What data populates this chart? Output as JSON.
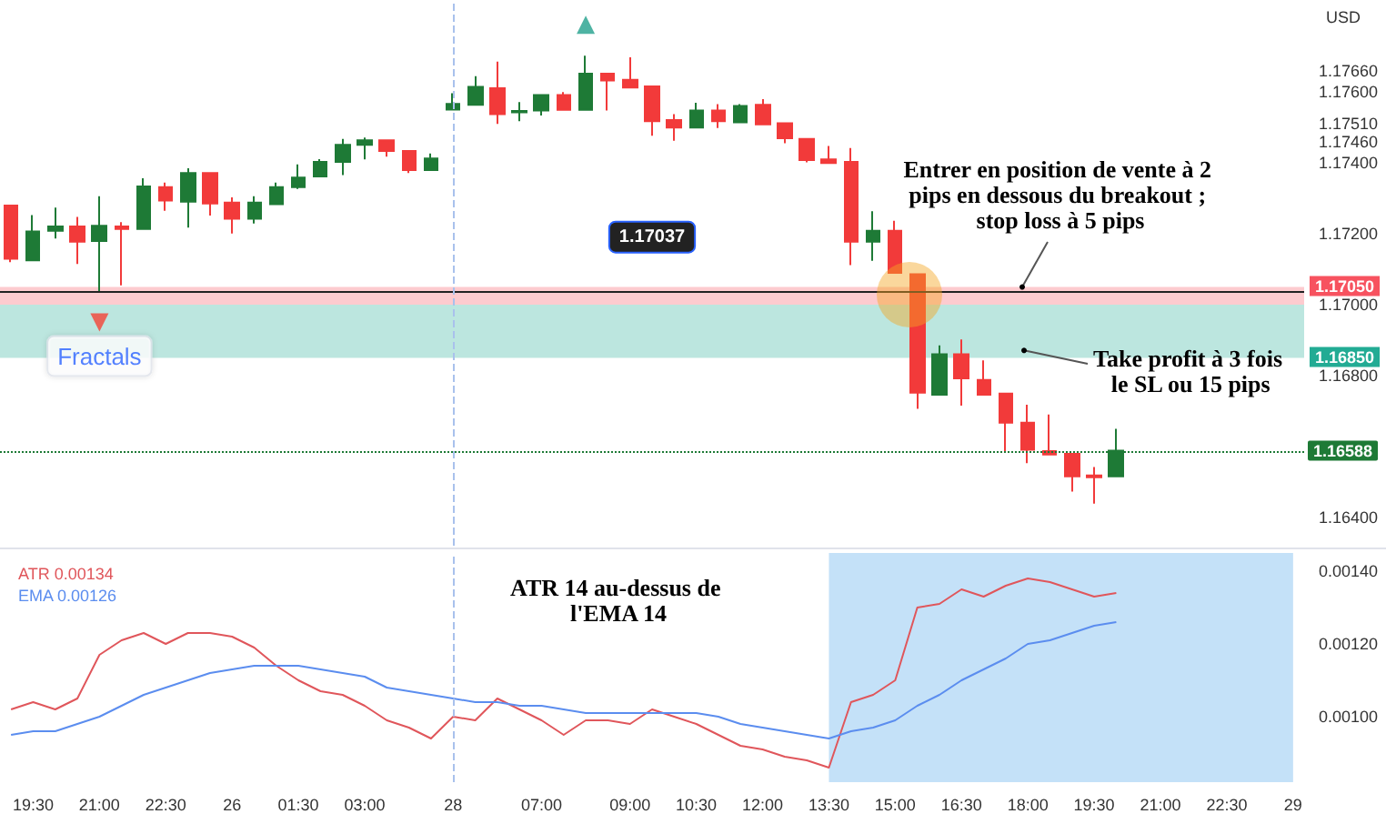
{
  "chart_data": [
    {
      "type": "candlestick",
      "ylabel": "USD",
      "tick_labels": "y",
      "categories": [
        null,
        "19:30",
        null,
        null,
        "21:00",
        null,
        null,
        "22:30",
        null,
        null,
        "26",
        null,
        null,
        "01:30",
        null,
        null,
        "03:00",
        null,
        null,
        null,
        "28",
        null,
        null,
        null,
        "07:00",
        null,
        null,
        null,
        "09:00",
        null,
        null,
        "10:30",
        null,
        null,
        "12:00",
        null,
        null,
        "13:30",
        null,
        null,
        "15:00",
        null,
        null,
        "16:30",
        null,
        null,
        "18:00",
        null,
        null,
        "19:30",
        null,
        null,
        "21:00",
        null,
        null,
        "22:30",
        null,
        null,
        "29"
      ],
      "ohlc": [
        [
          1.1728,
          1.1728,
          1.1712,
          1.1713
        ],
        [
          1.17125,
          1.17253,
          1.17125,
          1.17207
        ],
        [
          1.17209,
          1.17274,
          1.17187,
          1.17221
        ],
        [
          1.17221,
          1.17248,
          1.17115,
          1.17178
        ],
        [
          1.1718,
          1.17306,
          1.17037,
          1.17223
        ],
        [
          1.17221,
          1.17233,
          1.17055,
          1.17214
        ],
        [
          1.17214,
          1.17357,
          1.17214,
          1.17334
        ],
        [
          1.17332,
          1.17345,
          1.17265,
          1.17294
        ],
        [
          1.17291,
          1.17385,
          1.17218,
          1.17372
        ],
        [
          1.17372,
          1.17372,
          1.17252,
          1.17286
        ],
        [
          1.17288,
          1.17303,
          1.17201,
          1.17243
        ],
        [
          1.17243,
          1.17306,
          1.17229,
          1.17288
        ],
        [
          1.17284,
          1.17345,
          1.17284,
          1.17332
        ],
        [
          1.17332,
          1.17396,
          1.17327,
          1.17359
        ],
        [
          1.17362,
          1.17411,
          1.1736,
          1.17403
        ],
        [
          1.17403,
          1.17468,
          1.17366,
          1.17451
        ],
        [
          1.17451,
          1.17472,
          1.1741,
          1.17464
        ],
        [
          1.17464,
          1.17464,
          1.17418,
          1.17434
        ],
        [
          1.17434,
          1.17434,
          1.17372,
          1.1738
        ],
        [
          1.1738,
          1.17427,
          1.1738,
          1.17413
        ],
        [
          1.17551,
          1.17597,
          1.17551,
          1.17567
        ],
        [
          1.17564,
          1.17645,
          1.17564,
          1.17615
        ],
        [
          1.17611,
          1.17686,
          1.1751,
          1.17538
        ],
        [
          1.17543,
          1.17572,
          1.17518,
          1.17547
        ],
        [
          1.17548,
          1.17592,
          1.17534,
          1.17592
        ],
        [
          1.17592,
          1.176,
          1.1755,
          1.1755
        ],
        [
          1.1755,
          1.17703,
          1.1755,
          1.17652
        ],
        [
          1.17652,
          1.17652,
          1.17548,
          1.17633
        ],
        [
          1.17635,
          1.17698,
          1.17613,
          1.17613
        ],
        [
          1.17616,
          1.17616,
          1.17477,
          1.17518
        ],
        [
          1.17521,
          1.17538,
          1.17463,
          1.175
        ],
        [
          1.175,
          1.1757,
          1.175,
          1.17548
        ],
        [
          1.17548,
          1.17566,
          1.17499,
          1.17518
        ],
        [
          1.17515,
          1.17566,
          1.17515,
          1.17561
        ],
        [
          1.17564,
          1.1758,
          1.17509,
          1.17509
        ],
        [
          1.17512,
          1.17512,
          1.17456,
          1.1747
        ],
        [
          1.17468,
          1.17468,
          1.17402,
          1.17408
        ],
        [
          1.1741,
          1.17448,
          1.174,
          1.174
        ],
        [
          1.17403,
          1.17442,
          1.17112,
          1.17178
        ],
        [
          1.17178,
          1.17264,
          1.17124,
          1.17209
        ],
        [
          1.17209,
          1.17237,
          1.1709,
          1.1709
        ],
        [
          1.17086,
          1.17086,
          1.16706,
          1.16752
        ],
        [
          1.16746,
          1.16885,
          1.16746,
          1.1686
        ],
        [
          1.1686,
          1.16902,
          1.16715,
          1.16792
        ],
        [
          1.16788,
          1.16843,
          1.16746,
          1.16746
        ],
        [
          1.16749,
          1.16749,
          1.16584,
          1.16667
        ],
        [
          1.16667,
          1.16718,
          1.16553,
          1.16591
        ],
        [
          1.16587,
          1.1669,
          1.16577,
          1.16577
        ],
        [
          1.16579,
          1.16579,
          1.16473,
          1.16516
        ],
        [
          1.16518,
          1.16542,
          1.16439,
          1.16513
        ],
        [
          1.16516,
          1.1665,
          1.16516,
          1.16588
        ],
        null,
        null,
        null,
        null,
        null,
        null,
        null,
        null
      ],
      "colors": [
        "#f23a3a",
        "#1e7a36",
        "#1e7a36",
        "#f23a3a",
        "#1e7a36",
        "#f23a3a",
        "#1e7a36",
        "#f23a3a",
        "#1e7a36",
        "#f23a3a",
        "#f23a3a",
        "#1e7a36",
        "#1e7a36",
        "#1e7a36",
        "#1e7a36",
        "#1e7a36",
        "#1e7a36",
        "#f23a3a",
        "#f23a3a",
        "#1e7a36",
        "#1e7a36",
        "#1e7a36",
        "#f23a3a",
        "#1e7a36",
        "#1e7a36",
        "#f23a3a",
        "#1e7a36",
        "#f23a3a",
        "#f23a3a",
        "#f23a3a",
        "#f23a3a",
        "#1e7a36",
        "#f23a3a",
        "#1e7a36",
        "#f23a3a",
        "#f23a3a",
        "#f23a3a",
        "#f23a3a",
        "#f23a3a",
        "#1e7a36",
        "#f23a3a",
        "#f23a3a",
        "#1e7a36",
        "#f23a3a",
        "#f23a3a",
        "#f23a3a",
        "#f23a3a",
        "#f23a3a",
        "#f23a3a",
        "#f23a3a",
        "#1e7a36",
        null,
        null,
        null,
        null,
        null,
        null,
        null,
        null
      ],
      "series": [
        {
          "type": "scatter",
          "name": "Fractals",
          "marker": "triangle",
          "values": [
            null,
            null,
            null,
            null,
            1.1695,
            null,
            null,
            null,
            null,
            null,
            null,
            null,
            null,
            null,
            null,
            null,
            null,
            null,
            null,
            null,
            null,
            null,
            null,
            null,
            null,
            null,
            1.1779,
            null,
            null,
            null,
            null,
            null,
            null,
            null,
            null,
            null,
            null,
            null,
            null,
            null,
            null,
            null,
            null,
            null,
            null,
            null,
            null,
            null,
            null,
            null,
            null,
            null,
            null,
            null,
            null,
            null,
            null,
            null,
            null
          ],
          "colors": [
            null,
            null,
            null,
            null,
            "#f44336",
            null,
            null,
            null,
            null,
            null,
            null,
            null,
            null,
            null,
            null,
            null,
            null,
            null,
            null,
            null,
            null,
            null,
            null,
            null,
            null,
            null,
            "#22a08c",
            null,
            null,
            null,
            null,
            null,
            null,
            null,
            null,
            null,
            null,
            null,
            null,
            null,
            null,
            null,
            null,
            null,
            null,
            null,
            null,
            null,
            null,
            null,
            null,
            null,
            null,
            null,
            null,
            null,
            null,
            null,
            null
          ]
        }
      ],
      "ylim": [
        1.1632,
        1.1786
      ],
      "yticks": [
        {
          "value": 1.164,
          "label": "1.16400"
        },
        {
          "value": 1.168,
          "label": "1.16800"
        },
        {
          "value": 1.17,
          "label": "1.17000"
        },
        {
          "value": 1.172,
          "label": "1.17200"
        },
        {
          "value": 1.174,
          "label": "1.17400"
        },
        {
          "value": 1.1746,
          "label": "1.17460"
        },
        {
          "value": 1.1751,
          "label": "1.17510"
        },
        {
          "value": 1.176,
          "label": "1.17600"
        },
        {
          "value": 1.1766,
          "label": "1.17660"
        }
      ],
      "ref_lines": [
        {
          "axis": "y",
          "value": 1.17037,
          "label": "1.17037",
          "color": "#222222",
          "line_style": "solid"
        },
        {
          "axis": "y",
          "value": 1.16588,
          "label": "1.16588",
          "color": "#1e7a36",
          "line_style": "dotted"
        },
        {
          "axis": "x",
          "value": "28",
          "color": "#a9c1ec",
          "line_style": "dashed"
        }
      ],
      "bands": [
        {
          "axis": "y",
          "from": 1.17,
          "to": 1.1705,
          "label": "1.17050",
          "color": "#f7525f"
        },
        {
          "axis": "y",
          "from": 1.17,
          "to": 1.1685,
          "label": "1.16850",
          "color": "#22ab94"
        }
      ],
      "annotations": [
        {
          "text": "Entrer en position de vente à 2 pips en dessous du breakout ; stop loss à 5 pips",
          "y": 1.1705
        },
        {
          "text": "Take profit à 3 fois le SL ou 15 pips",
          "y": 1.16871
        }
      ]
    },
    {
      "type": "line",
      "legend": "top left",
      "categories": [
        null,
        "19:30",
        null,
        null,
        "21:00",
        null,
        null,
        "22:30",
        null,
        null,
        "26",
        null,
        null,
        "01:30",
        null,
        null,
        "03:00",
        null,
        null,
        null,
        "28",
        null,
        null,
        null,
        "07:00",
        null,
        null,
        null,
        "09:00",
        null,
        null,
        "10:30",
        null,
        null,
        "12:00",
        null,
        null,
        "13:30",
        null,
        null,
        "15:00",
        null,
        null,
        "16:30",
        null,
        null,
        "18:00",
        null,
        null,
        "19:30",
        null,
        null,
        "21:00",
        null,
        null,
        "22:30",
        null,
        null,
        "29"
      ],
      "series": [
        {
          "name": "ATR 0.00134",
          "color": "#e0565b",
          "values": [
            0.00102,
            0.00104,
            0.00102,
            0.00105,
            0.00117,
            0.00121,
            0.00123,
            0.0012,
            0.00123,
            0.00123,
            0.00122,
            0.00119,
            0.00114,
            0.0011,
            0.00107,
            0.00106,
            0.00103,
            0.00099,
            0.00097,
            0.00094,
            0.001,
            0.00099,
            0.00105,
            0.00102,
            0.00099,
            0.00095,
            0.00099,
            0.00099,
            0.00098,
            0.00102,
            0.001,
            0.00098,
            0.00095,
            0.00092,
            0.00091,
            0.00089,
            0.00088,
            0.00086,
            0.00104,
            0.00106,
            0.0011,
            0.0013,
            0.00131,
            0.00135,
            0.00133,
            0.00136,
            0.00138,
            0.00137,
            0.00135,
            0.00133,
            0.00134,
            null,
            null,
            null,
            null,
            null,
            null,
            null,
            null
          ]
        },
        {
          "name": "EMA 0.00126",
          "color": "#5b8def",
          "values": [
            0.00095,
            0.00096,
            0.00096,
            0.00098,
            0.001,
            0.00103,
            0.00106,
            0.00108,
            0.0011,
            0.00112,
            0.00113,
            0.00114,
            0.00114,
            0.00114,
            0.00113,
            0.00112,
            0.00111,
            0.00108,
            0.00107,
            0.00106,
            0.00105,
            0.00104,
            0.00104,
            0.00103,
            0.00103,
            0.00102,
            0.00101,
            0.00101,
            0.00101,
            0.00101,
            0.00101,
            0.00101,
            0.001,
            0.00098,
            0.00097,
            0.00096,
            0.00095,
            0.00094,
            0.00096,
            0.00097,
            0.00099,
            0.00103,
            0.00106,
            0.0011,
            0.00113,
            0.00116,
            0.0012,
            0.00121,
            0.00123,
            0.00125,
            0.00126,
            null,
            null,
            null,
            null,
            null,
            null,
            null,
            null
          ]
        }
      ],
      "ylim": [
        0.00082,
        0.00145
      ],
      "yticks": [
        {
          "value": 0.001,
          "label": "0.00100"
        },
        {
          "value": 0.0012,
          "label": "0.00120"
        },
        {
          "value": 0.0014,
          "label": "0.00140"
        }
      ],
      "ref_lines": [
        {
          "axis": "x",
          "value": "28",
          "color": "#a9c1ec",
          "line_style": "dashed"
        }
      ],
      "bands": [
        {
          "axis": "x",
          "from": "13:30",
          "to": "29",
          "color": "#c4e1f8"
        }
      ],
      "annotations": [
        "ATR 14 au-dessus de l'EMA 14"
      ]
    }
  ]
}
